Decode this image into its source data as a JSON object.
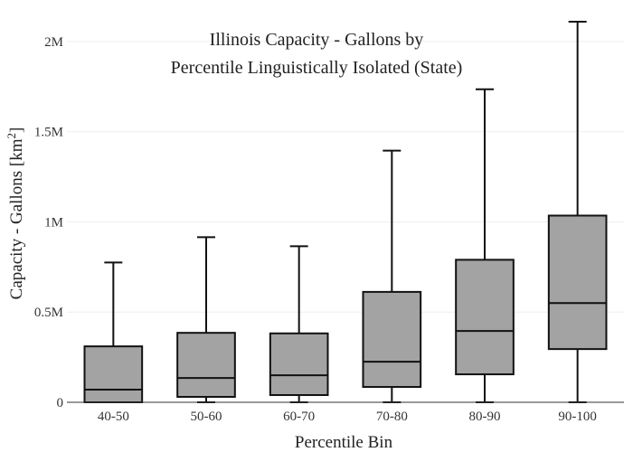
{
  "chart_data": {
    "type": "box",
    "title_lines": [
      "Illinois Capacity - Gallons by",
      "Percentile Linguistically Isolated (State)"
    ],
    "xlabel": "Percentile Bin",
    "ylabel_main": "Capacity - Gallons  [km",
    "ylabel_sup": "2",
    "ylabel_tail": "]",
    "ylim": [
      0,
      2150000
    ],
    "yticks": [
      {
        "value": 0,
        "label": "0"
      },
      {
        "value": 500000,
        "label": "0.5M"
      },
      {
        "value": 1000000,
        "label": "1M"
      },
      {
        "value": 1500000,
        "label": "1.5M"
      },
      {
        "value": 2000000,
        "label": "2M"
      }
    ],
    "grid": true,
    "box_color": "#a3a3a3",
    "line_color": "#111111",
    "categories": [
      "40-50",
      "50-60",
      "60-70",
      "70-80",
      "80-90",
      "90-100"
    ],
    "boxes": [
      {
        "min": 0,
        "q1": 0,
        "median": 70000,
        "q3": 310000,
        "max": 775000
      },
      {
        "min": 0,
        "q1": 30000,
        "median": 135000,
        "q3": 385000,
        "max": 915000
      },
      {
        "min": 0,
        "q1": 40000,
        "median": 150000,
        "q3": 382000,
        "max": 865000
      },
      {
        "min": 0,
        "q1": 85000,
        "median": 225000,
        "q3": 612000,
        "max": 1395000
      },
      {
        "min": 0,
        "q1": 155000,
        "median": 395000,
        "q3": 790000,
        "max": 1735000
      },
      {
        "min": 0,
        "q1": 295000,
        "median": 550000,
        "q3": 1035000,
        "max": 2110000
      }
    ]
  }
}
